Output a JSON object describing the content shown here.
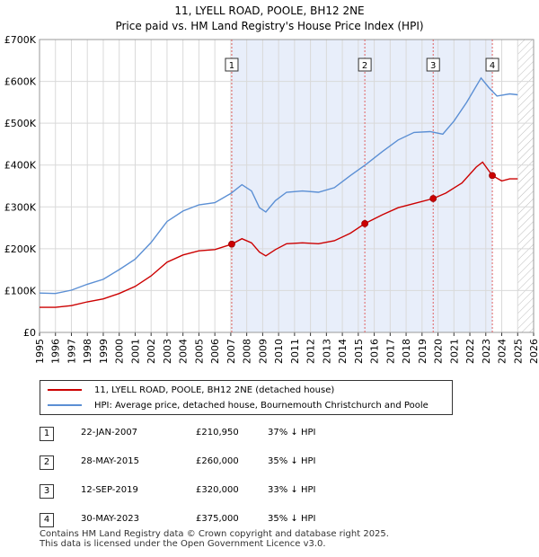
{
  "title_line1": "11, LYELL ROAD, POOLE, BH12 2NE",
  "title_line2": "Price paid vs. HM Land Registry's House Price Index (HPI)",
  "chart_data": {
    "type": "line",
    "xlim": [
      1995,
      2026
    ],
    "ylim": [
      0,
      700000
    ],
    "yticks": [
      {
        "value": 0,
        "label": "£0"
      },
      {
        "value": 100000,
        "label": "£100K"
      },
      {
        "value": 200000,
        "label": "£200K"
      },
      {
        "value": 300000,
        "label": "£300K"
      },
      {
        "value": 400000,
        "label": "£400K"
      },
      {
        "value": 500000,
        "label": "£500K"
      },
      {
        "value": 600000,
        "label": "£600K"
      },
      {
        "value": 700000,
        "label": "£700K"
      }
    ],
    "xticks": [
      "1995",
      "1996",
      "1997",
      "1998",
      "1999",
      "2000",
      "2001",
      "2002",
      "2003",
      "2004",
      "2005",
      "2006",
      "2007",
      "2008",
      "2009",
      "2010",
      "2011",
      "2012",
      "2013",
      "2014",
      "2015",
      "2016",
      "2017",
      "2018",
      "2019",
      "2020",
      "2021",
      "2022",
      "2023",
      "2024",
      "2025",
      "2026"
    ],
    "grid": true,
    "colors": {
      "property": "#cc0000",
      "hpi": "#5b8fd4",
      "shade": "#e8eefa",
      "vline": "#e06060"
    },
    "shaded_range": [
      2007.06,
      2023.41
    ],
    "future_hatch_from": 2025.0,
    "series": [
      {
        "name": "11, LYELL ROAD, POOLE, BH12 2NE (detached house)",
        "points": [
          [
            1995.0,
            60000
          ],
          [
            1996.0,
            60000
          ],
          [
            1997.0,
            64000
          ],
          [
            1998.0,
            73000
          ],
          [
            1999.0,
            80000
          ],
          [
            2000.0,
            93000
          ],
          [
            2001.0,
            110000
          ],
          [
            2002.0,
            135000
          ],
          [
            2003.0,
            168000
          ],
          [
            2004.0,
            185000
          ],
          [
            2005.0,
            195000
          ],
          [
            2006.0,
            198000
          ],
          [
            2007.06,
            210950
          ],
          [
            2007.7,
            224000
          ],
          [
            2008.3,
            214000
          ],
          [
            2008.8,
            192000
          ],
          [
            2009.2,
            183000
          ],
          [
            2009.8,
            198000
          ],
          [
            2010.5,
            212000
          ],
          [
            2011.5,
            214000
          ],
          [
            2012.5,
            212000
          ],
          [
            2013.5,
            219000
          ],
          [
            2014.5,
            237000
          ],
          [
            2015.41,
            260000
          ],
          [
            2016.5,
            281000
          ],
          [
            2017.5,
            298000
          ],
          [
            2018.5,
            308000
          ],
          [
            2019.7,
            320000
          ],
          [
            2020.5,
            333000
          ],
          [
            2021.5,
            357000
          ],
          [
            2022.4,
            395000
          ],
          [
            2022.8,
            407000
          ],
          [
            2023.41,
            375000
          ],
          [
            2024.0,
            362000
          ],
          [
            2024.5,
            367000
          ],
          [
            2025.0,
            367000
          ]
        ]
      },
      {
        "name": "HPI: Average price, detached house, Bournemouth Christchurch and Poole",
        "points": [
          [
            1995.0,
            94000
          ],
          [
            1996.0,
            93000
          ],
          [
            1997.0,
            101000
          ],
          [
            1998.0,
            115000
          ],
          [
            1999.0,
            127000
          ],
          [
            2000.0,
            150000
          ],
          [
            2001.0,
            175000
          ],
          [
            2002.0,
            215000
          ],
          [
            2003.0,
            265000
          ],
          [
            2004.0,
            290000
          ],
          [
            2005.0,
            305000
          ],
          [
            2006.0,
            310000
          ],
          [
            2007.0,
            332000
          ],
          [
            2007.7,
            353000
          ],
          [
            2008.3,
            338000
          ],
          [
            2008.8,
            298000
          ],
          [
            2009.2,
            288000
          ],
          [
            2009.8,
            315000
          ],
          [
            2010.5,
            335000
          ],
          [
            2011.5,
            338000
          ],
          [
            2012.5,
            335000
          ],
          [
            2013.5,
            346000
          ],
          [
            2014.5,
            375000
          ],
          [
            2015.5,
            402000
          ],
          [
            2016.5,
            432000
          ],
          [
            2017.5,
            460000
          ],
          [
            2018.5,
            478000
          ],
          [
            2019.5,
            480000
          ],
          [
            2020.3,
            474000
          ],
          [
            2021.0,
            505000
          ],
          [
            2021.8,
            550000
          ],
          [
            2022.7,
            608000
          ],
          [
            2023.2,
            585000
          ],
          [
            2023.7,
            565000
          ],
          [
            2024.5,
            570000
          ],
          [
            2025.0,
            568000
          ]
        ]
      }
    ],
    "sales": [
      {
        "num": "1",
        "x": 2007.06,
        "price": 210950
      },
      {
        "num": "2",
        "x": 2015.41,
        "price": 260000
      },
      {
        "num": "3",
        "x": 2019.7,
        "price": 320000
      },
      {
        "num": "4",
        "x": 2023.41,
        "price": 375000
      }
    ]
  },
  "legend": {
    "property_label": "11, LYELL ROAD, POOLE, BH12 2NE (detached house)",
    "hpi_label": "HPI: Average price, detached house, Bournemouth Christchurch and Poole"
  },
  "sales_table": [
    {
      "num": "1",
      "date": "22-JAN-2007",
      "price": "£210,950",
      "hpi": "37% ↓ HPI"
    },
    {
      "num": "2",
      "date": "28-MAY-2015",
      "price": "£260,000",
      "hpi": "35% ↓ HPI"
    },
    {
      "num": "3",
      "date": "12-SEP-2019",
      "price": "£320,000",
      "hpi": "33% ↓ HPI"
    },
    {
      "num": "4",
      "date": "30-MAY-2023",
      "price": "£375,000",
      "hpi": "35% ↓ HPI"
    }
  ],
  "footer_line1": "Contains HM Land Registry data © Crown copyright and database right 2025.",
  "footer_line2": "This data is licensed under the Open Government Licence v3.0."
}
